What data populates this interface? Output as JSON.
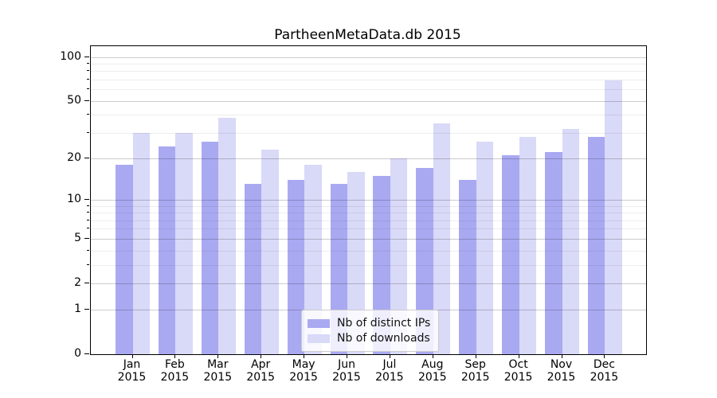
{
  "chart_data": {
    "type": "bar",
    "title": "PartheenMetaData.db 2015",
    "categories": [
      "Jan",
      "Feb",
      "Mar",
      "Apr",
      "May",
      "Jun",
      "Jul",
      "Aug",
      "Sep",
      "Oct",
      "Nov",
      "Dec"
    ],
    "year_label": "2015",
    "series": [
      {
        "name": "Nb of distinct IPs",
        "color": "#a9a9f2",
        "values": [
          18,
          24,
          26,
          13,
          14,
          13,
          15,
          17,
          14,
          21,
          22,
          28
        ]
      },
      {
        "name": "Nb of downloads",
        "color": "#d9d9f8",
        "values": [
          30,
          30,
          38,
          23,
          18,
          16,
          20,
          35,
          26,
          28,
          32,
          69
        ]
      }
    ],
    "xlabel": "",
    "ylabel": "",
    "yscale": "log1p",
    "y_axis": {
      "ticks_major": [
        0,
        1,
        2,
        5,
        10,
        20,
        50,
        100
      ],
      "ticks_minor": [
        3,
        4,
        6,
        7,
        8,
        9,
        30,
        40,
        60,
        70,
        80,
        90
      ],
      "ylim": [
        0,
        118
      ]
    },
    "grid": true,
    "legend": {
      "position": "lower center",
      "items": [
        "Nb of distinct IPs",
        "Nb of downloads"
      ]
    }
  }
}
